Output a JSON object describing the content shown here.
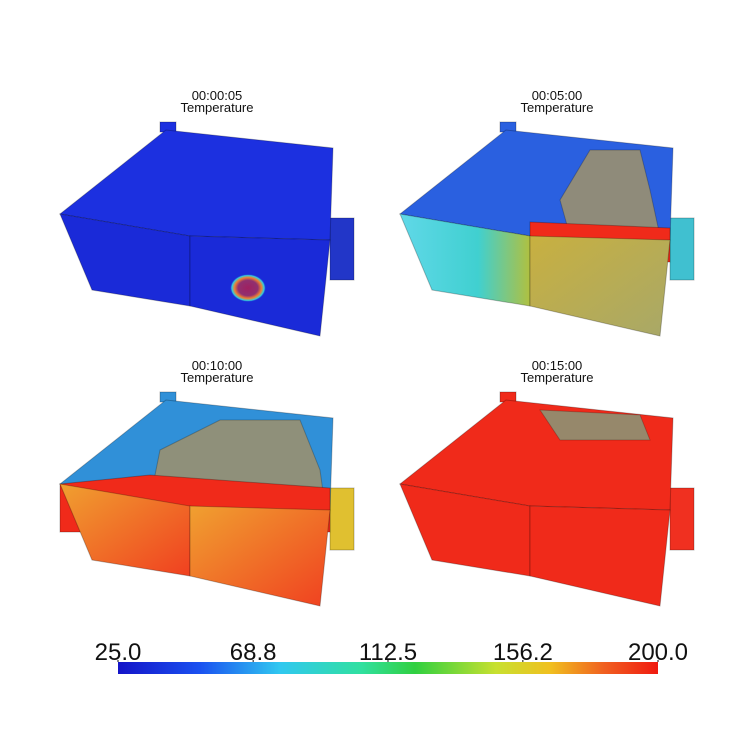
{
  "panels": [
    {
      "time": "00:00:05",
      "label": "Temperature"
    },
    {
      "time": "00:05:00",
      "label": "Temperature"
    },
    {
      "time": "00:10:00",
      "label": "Temperature"
    },
    {
      "time": "00:15:00",
      "label": "Temperature"
    }
  ],
  "colorbar": {
    "lim": [
      25,
      200
    ],
    "ticks": [
      {
        "value": 25,
        "label": "25.0"
      },
      68.8,
      112.5,
      156.2,
      {
        "value": 200,
        "label": "200.0"
      }
    ]
  }
}
